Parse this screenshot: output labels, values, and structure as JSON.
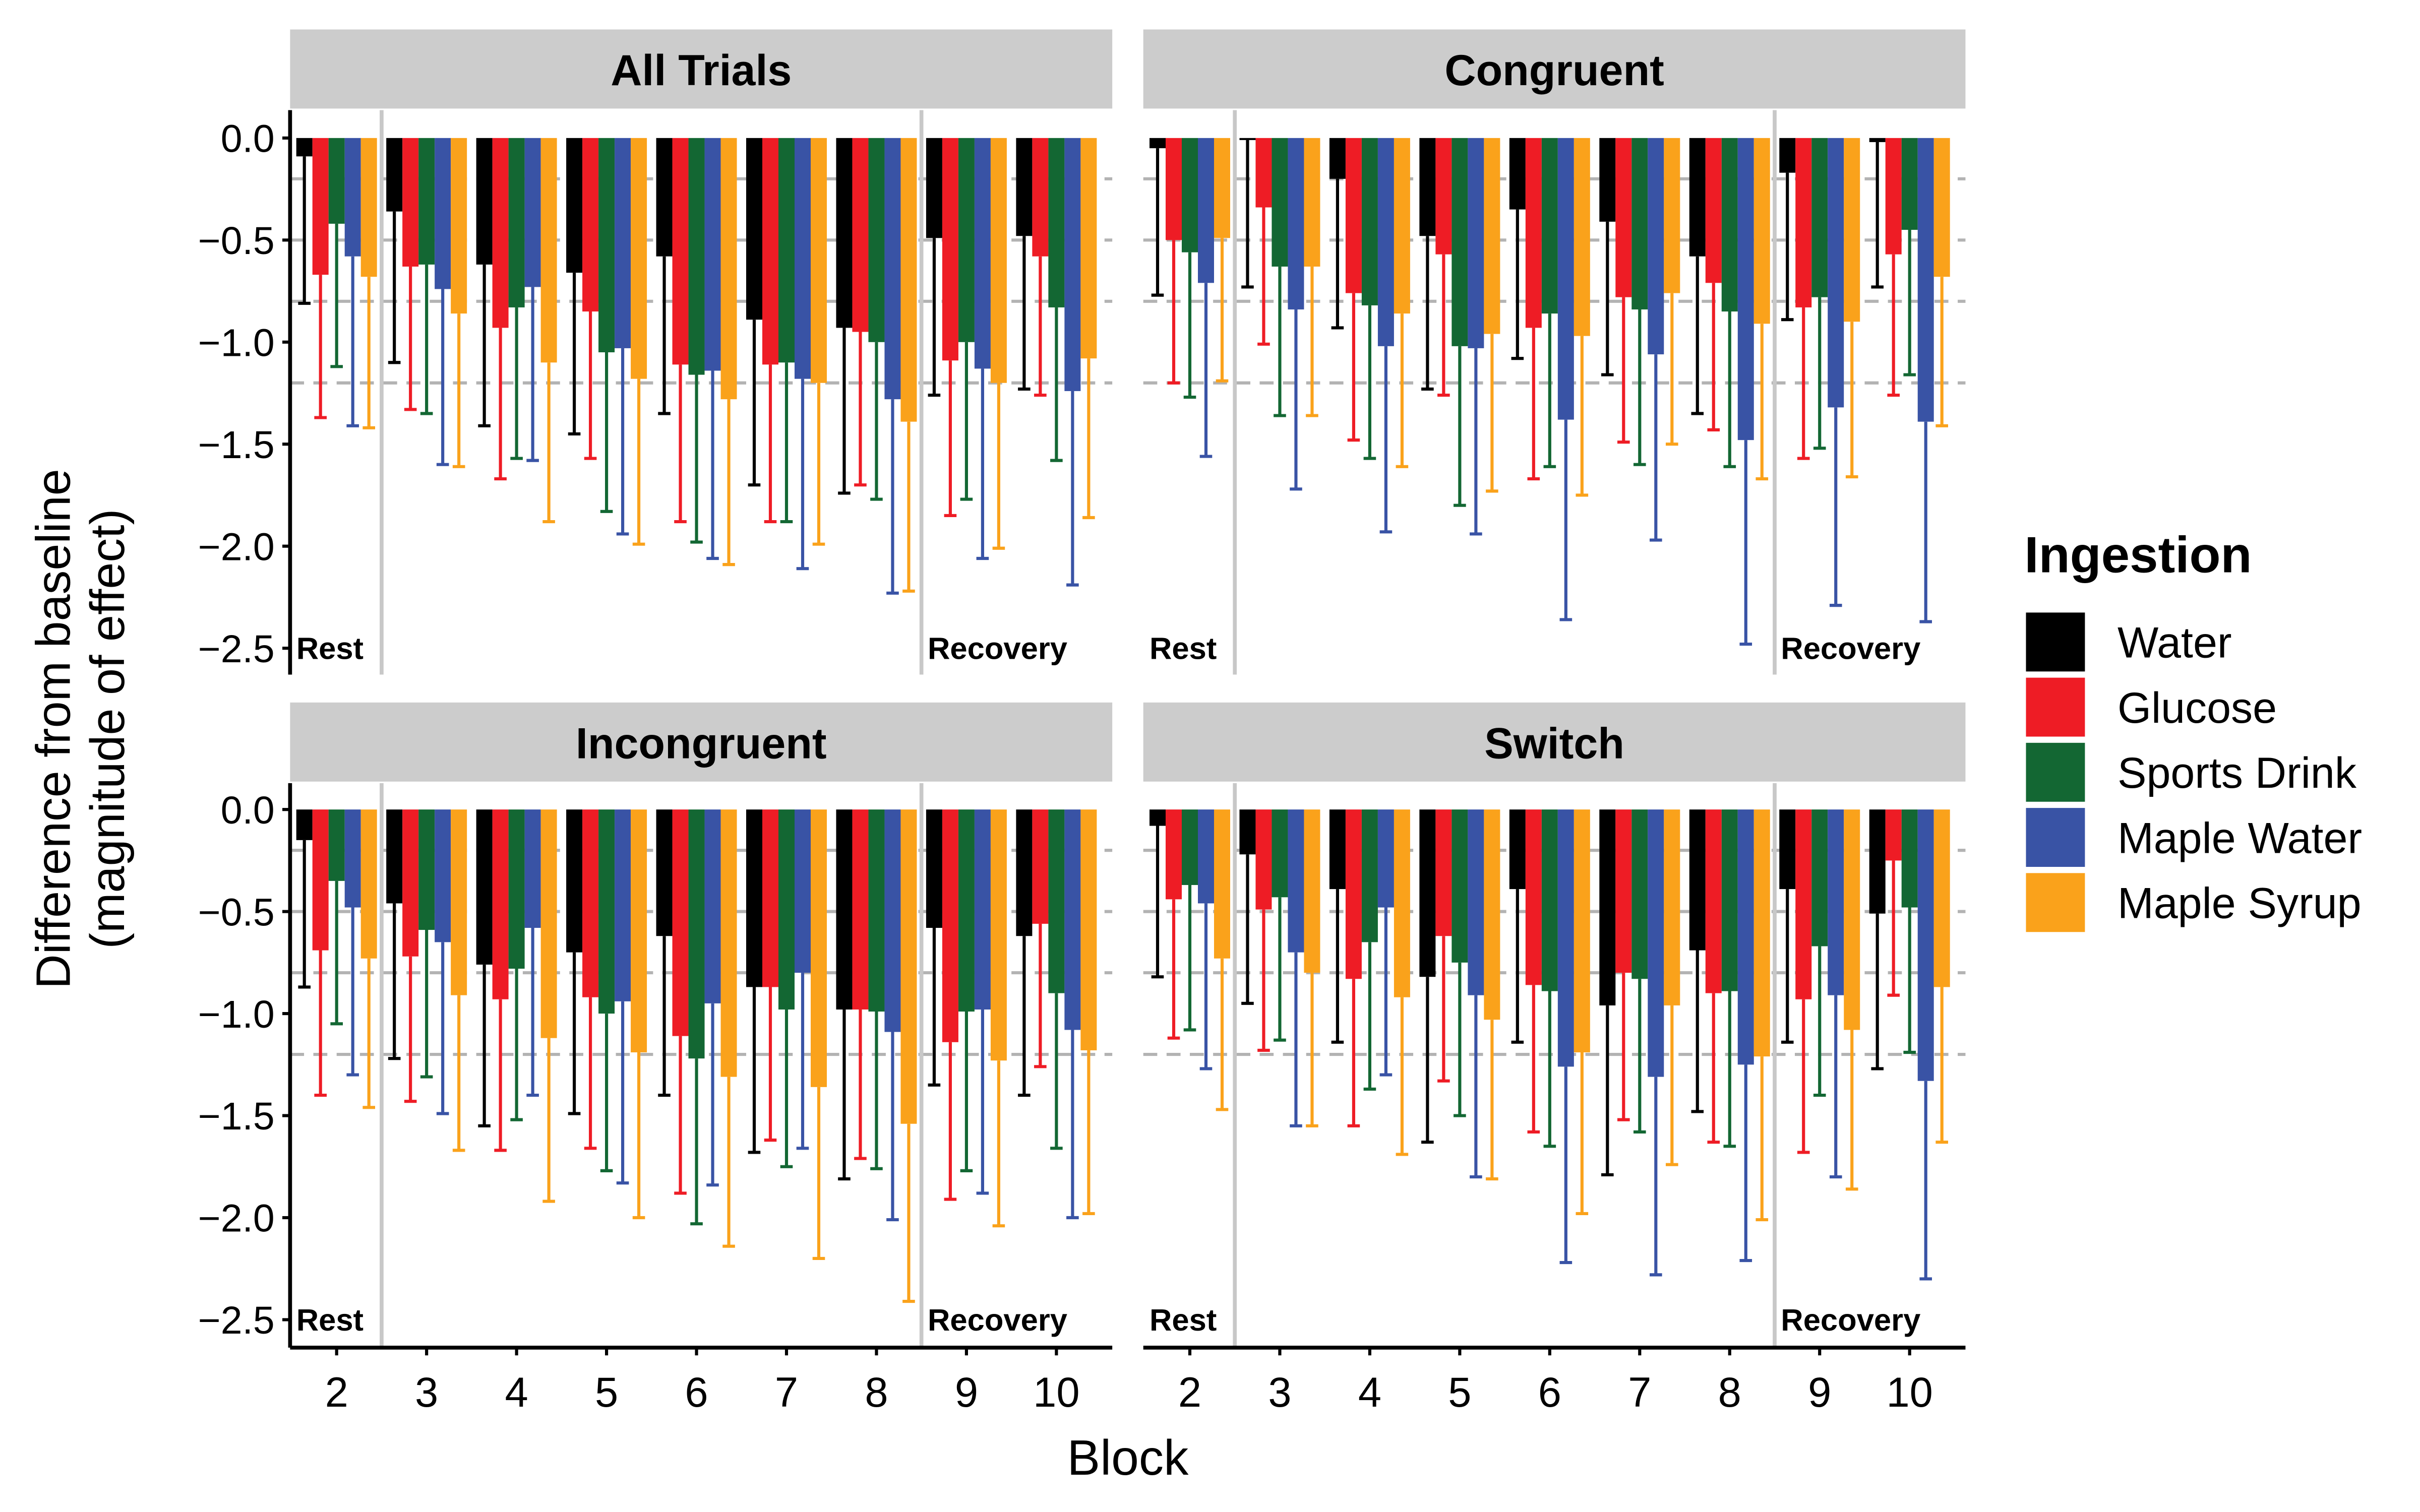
{
  "chart_data": {
    "type": "bar",
    "facet_layout": "2x2",
    "xlabel": "Block",
    "ylabel": [
      "Difference from baseline",
      "(magnitude of effect)"
    ],
    "ylim": [
      -2.6,
      0.12
    ],
    "yticks": [
      0.0,
      -0.5,
      -1.0,
      -1.5,
      -2.0,
      -2.5
    ],
    "ytick_labels": [
      "0.0",
      "−0.5",
      "−1.0",
      "−1.5",
      "−2.0",
      "−2.5"
    ],
    "categories": [
      "2",
      "3",
      "4",
      "5",
      "6",
      "7",
      "8",
      "9",
      "10"
    ],
    "reference_lines_dashed": [
      -0.2,
      -0.5,
      -0.8,
      -1.2
    ],
    "phase_dividers": [
      2.5,
      8.5
    ],
    "phase_labels": {
      "rest": "Rest",
      "recovery": "Recovery"
    },
    "legend": {
      "title": "Ingestion",
      "position": "right"
    },
    "series_names": [
      "Water",
      "Glucose",
      "Sports Drink",
      "Maple Water",
      "Maple Syrup"
    ],
    "series_colors": [
      "#000000",
      "#ee1c25",
      "#136733",
      "#3953a5",
      "#faa21b"
    ],
    "panels": [
      {
        "title": "All Trials",
        "values": [
          [
            -0.09,
            -0.36,
            -0.62,
            -0.66,
            -0.58,
            -0.89,
            -0.93,
            -0.49,
            -0.48
          ],
          [
            -0.67,
            -0.63,
            -0.93,
            -0.85,
            -1.11,
            -1.11,
            -0.95,
            -1.09,
            -0.58
          ],
          [
            -0.42,
            -0.62,
            -0.83,
            -1.05,
            -1.16,
            -1.1,
            -1.0,
            -1.0,
            -0.83
          ],
          [
            -0.58,
            -0.74,
            -0.73,
            -1.03,
            -1.14,
            -1.18,
            -1.28,
            -1.13,
            -1.24
          ],
          [
            -0.68,
            -0.86,
            -1.1,
            -1.18,
            -1.28,
            -1.2,
            -1.39,
            -1.2,
            -1.08
          ]
        ],
        "error_lower": [
          [
            -0.81,
            -1.1,
            -1.41,
            -1.45,
            -1.35,
            -1.7,
            -1.74,
            -1.26,
            -1.23
          ],
          [
            -1.37,
            -1.33,
            -1.67,
            -1.57,
            -1.88,
            -1.88,
            -1.7,
            -1.85,
            -1.26
          ],
          [
            -1.12,
            -1.35,
            -1.57,
            -1.83,
            -1.98,
            -1.88,
            -1.77,
            -1.77,
            -1.58
          ],
          [
            -1.41,
            -1.6,
            -1.58,
            -1.94,
            -2.06,
            -2.11,
            -2.23,
            -2.06,
            -2.19
          ],
          [
            -1.42,
            -1.61,
            -1.88,
            -1.99,
            -2.09,
            -1.99,
            -2.22,
            -2.01,
            -1.86
          ]
        ]
      },
      {
        "title": "Congruent",
        "values": [
          [
            -0.05,
            -0.01,
            -0.2,
            -0.48,
            -0.35,
            -0.41,
            -0.58,
            -0.17,
            -0.02
          ],
          [
            -0.5,
            -0.34,
            -0.76,
            -0.57,
            -0.93,
            -0.78,
            -0.71,
            -0.83,
            -0.57
          ],
          [
            -0.56,
            -0.63,
            -0.82,
            -1.02,
            -0.86,
            -0.84,
            -0.85,
            -0.78,
            -0.45
          ],
          [
            -0.71,
            -0.84,
            -1.02,
            -1.03,
            -1.38,
            -1.06,
            -1.48,
            -1.32,
            -1.39
          ],
          [
            -0.49,
            -0.63,
            -0.86,
            -0.96,
            -0.97,
            -0.76,
            -0.91,
            -0.9,
            -0.68
          ]
        ],
        "error_lower": [
          [
            -0.77,
            -0.73,
            -0.93,
            -1.23,
            -1.08,
            -1.16,
            -1.35,
            -0.89,
            -0.73
          ],
          [
            -1.2,
            -1.01,
            -1.48,
            -1.26,
            -1.67,
            -1.49,
            -1.43,
            -1.57,
            -1.26
          ],
          [
            -1.27,
            -1.36,
            -1.57,
            -1.8,
            -1.61,
            -1.6,
            -1.61,
            -1.52,
            -1.16
          ],
          [
            -1.56,
            -1.72,
            -1.93,
            -1.94,
            -2.36,
            -1.97,
            -2.48,
            -2.29,
            -2.37
          ],
          [
            -1.19,
            -1.36,
            -1.61,
            -1.73,
            -1.75,
            -1.5,
            -1.67,
            -1.66,
            -1.41
          ]
        ]
      },
      {
        "title": "Incongruent",
        "values": [
          [
            -0.15,
            -0.46,
            -0.76,
            -0.7,
            -0.62,
            -0.87,
            -0.98,
            -0.58,
            -0.62
          ],
          [
            -0.69,
            -0.72,
            -0.93,
            -0.92,
            -1.11,
            -0.87,
            -0.98,
            -1.14,
            -0.56
          ],
          [
            -0.35,
            -0.59,
            -0.78,
            -1.0,
            -1.22,
            -0.98,
            -0.99,
            -0.99,
            -0.9
          ],
          [
            -0.48,
            -0.65,
            -0.58,
            -0.94,
            -0.95,
            -0.8,
            -1.09,
            -0.98,
            -1.08
          ],
          [
            -0.73,
            -0.91,
            -1.12,
            -1.19,
            -1.31,
            -1.36,
            -1.54,
            -1.23,
            -1.18
          ]
        ],
        "error_lower": [
          [
            -0.87,
            -1.22,
            -1.55,
            -1.49,
            -1.4,
            -1.68,
            -1.81,
            -1.35,
            -1.4
          ],
          [
            -1.4,
            -1.43,
            -1.67,
            -1.66,
            -1.88,
            -1.62,
            -1.71,
            -1.91,
            -1.26
          ],
          [
            -1.05,
            -1.31,
            -1.52,
            -1.77,
            -2.03,
            -1.75,
            -1.76,
            -1.77,
            -1.66
          ],
          [
            -1.3,
            -1.49,
            -1.4,
            -1.83,
            -1.84,
            -1.66,
            -2.01,
            -1.88,
            -2.0
          ],
          [
            -1.46,
            -1.67,
            -1.92,
            -2.0,
            -2.14,
            -2.2,
            -2.41,
            -2.04,
            -1.98
          ]
        ]
      },
      {
        "title": "Switch",
        "values": [
          [
            -0.08,
            -0.22,
            -0.39,
            -0.82,
            -0.39,
            -0.96,
            -0.69,
            -0.39,
            -0.51
          ],
          [
            -0.44,
            -0.49,
            -0.83,
            -0.62,
            -0.86,
            -0.8,
            -0.9,
            -0.93,
            -0.25
          ],
          [
            -0.37,
            -0.43,
            -0.65,
            -0.75,
            -0.89,
            -0.83,
            -0.89,
            -0.67,
            -0.48
          ],
          [
            -0.46,
            -0.7,
            -0.48,
            -0.91,
            -1.26,
            -1.31,
            -1.25,
            -0.91,
            -1.33
          ],
          [
            -0.73,
            -0.8,
            -0.92,
            -1.03,
            -1.19,
            -0.96,
            -1.21,
            -1.08,
            -0.87
          ]
        ],
        "error_lower": [
          [
            -0.82,
            -0.95,
            -1.14,
            -1.63,
            -1.14,
            -1.79,
            -1.48,
            -1.14,
            -1.27
          ],
          [
            -1.12,
            -1.18,
            -1.55,
            -1.33,
            -1.58,
            -1.52,
            -1.63,
            -1.68,
            -0.91
          ],
          [
            -1.08,
            -1.13,
            -1.37,
            -1.5,
            -1.65,
            -1.58,
            -1.65,
            -1.4,
            -1.19
          ],
          [
            -1.27,
            -1.55,
            -1.3,
            -1.8,
            -2.22,
            -2.28,
            -2.21,
            -1.8,
            -2.3
          ],
          [
            -1.47,
            -1.55,
            -1.69,
            -1.81,
            -1.98,
            -1.74,
            -2.01,
            -1.86,
            -1.63
          ]
        ]
      }
    ]
  }
}
